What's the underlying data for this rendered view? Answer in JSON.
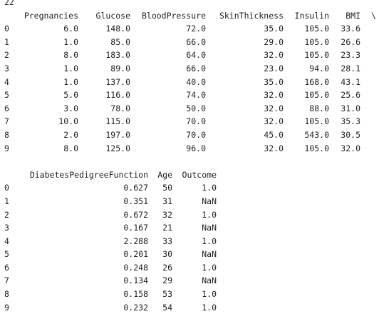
{
  "output": {
    "top_line": "22",
    "block1": {
      "headers": [
        "",
        "Pregnancies",
        "Glucose",
        "BloodPressure",
        "SkinThickness",
        "Insulin",
        "BMI",
        "\\"
      ],
      "rows": [
        [
          "0",
          "6.0",
          "148.0",
          "72.0",
          "35.0",
          "105.0",
          "33.6"
        ],
        [
          "1",
          "1.0",
          "85.0",
          "66.0",
          "29.0",
          "105.0",
          "26.6"
        ],
        [
          "2",
          "8.0",
          "183.0",
          "64.0",
          "32.0",
          "105.0",
          "23.3"
        ],
        [
          "3",
          "1.0",
          "89.0",
          "66.0",
          "23.0",
          "94.0",
          "28.1"
        ],
        [
          "4",
          "1.0",
          "137.0",
          "40.0",
          "35.0",
          "168.0",
          "43.1"
        ],
        [
          "5",
          "5.0",
          "116.0",
          "74.0",
          "32.0",
          "105.0",
          "25.6"
        ],
        [
          "6",
          "3.0",
          "78.0",
          "50.0",
          "32.0",
          "88.0",
          "31.0"
        ],
        [
          "7",
          "10.0",
          "115.0",
          "70.0",
          "32.0",
          "105.0",
          "35.3"
        ],
        [
          "8",
          "2.0",
          "197.0",
          "70.0",
          "45.0",
          "543.0",
          "30.5"
        ],
        [
          "9",
          "8.0",
          "125.0",
          "96.0",
          "32.0",
          "105.0",
          "32.0"
        ]
      ]
    },
    "block2": {
      "headers": [
        "",
        "DiabetesPedigreeFunction",
        "Age",
        "Outcome"
      ],
      "rows": [
        [
          "0",
          "0.627",
          "50",
          "1.0"
        ],
        [
          "1",
          "0.351",
          "31",
          "NaN"
        ],
        [
          "2",
          "0.672",
          "32",
          "1.0"
        ],
        [
          "3",
          "0.167",
          "21",
          "NaN"
        ],
        [
          "4",
          "2.288",
          "33",
          "1.0"
        ],
        [
          "5",
          "0.201",
          "30",
          "NaN"
        ],
        [
          "6",
          "0.248",
          "26",
          "1.0"
        ],
        [
          "7",
          "0.134",
          "29",
          "NaN"
        ],
        [
          "8",
          "0.158",
          "53",
          "1.0"
        ],
        [
          "9",
          "0.232",
          "54",
          "1.0"
        ]
      ]
    }
  }
}
